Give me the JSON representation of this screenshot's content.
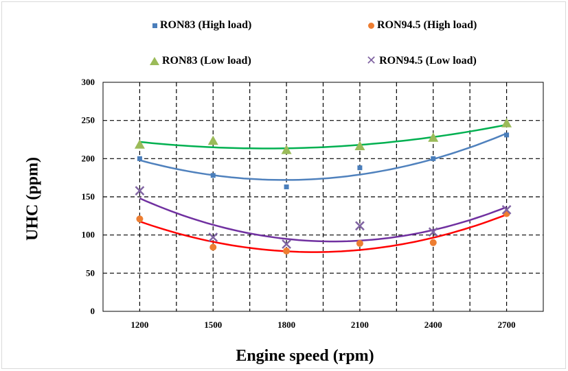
{
  "chart_data": {
    "type": "scatter",
    "xlabel": "Engine speed (rpm)",
    "ylabel": "UHC (ppm)",
    "x": [
      1200,
      1500,
      1800,
      2100,
      2400,
      2700
    ],
    "xlim": [
      1050,
      2850
    ],
    "ylim": [
      0,
      300
    ],
    "yticks": [
      0,
      50,
      100,
      150,
      200,
      250,
      300
    ],
    "grid": true,
    "legend_position": "top",
    "series": [
      {
        "name": "RON83 (High load)",
        "marker": "square",
        "color": "#4a7ebb",
        "trend_color": "#4f81bd",
        "values": [
          200,
          178,
          163,
          188,
          200,
          231
        ],
        "trend": "polynomial order 2"
      },
      {
        "name": "RON94.5 (High load)",
        "marker": "circle",
        "color": "#ed7d31",
        "trend_color": "#ff0000",
        "values": [
          121,
          84,
          79,
          89,
          90,
          128
        ],
        "trend": "polynomial order 2"
      },
      {
        "name": "RON83 (Low load)",
        "marker": "triangle",
        "color": "#9bbb59",
        "trend_color": "#00b050",
        "values": [
          218,
          223,
          211,
          216,
          227,
          246
        ],
        "trend": "polynomial order 2"
      },
      {
        "name": "RON94.5 (Low load)",
        "marker": "x",
        "color": "#8064a2",
        "trend_color": "#7030a0",
        "values": [
          158,
          97,
          88,
          112,
          104,
          133
        ],
        "trend": "polynomial order 2"
      }
    ]
  }
}
